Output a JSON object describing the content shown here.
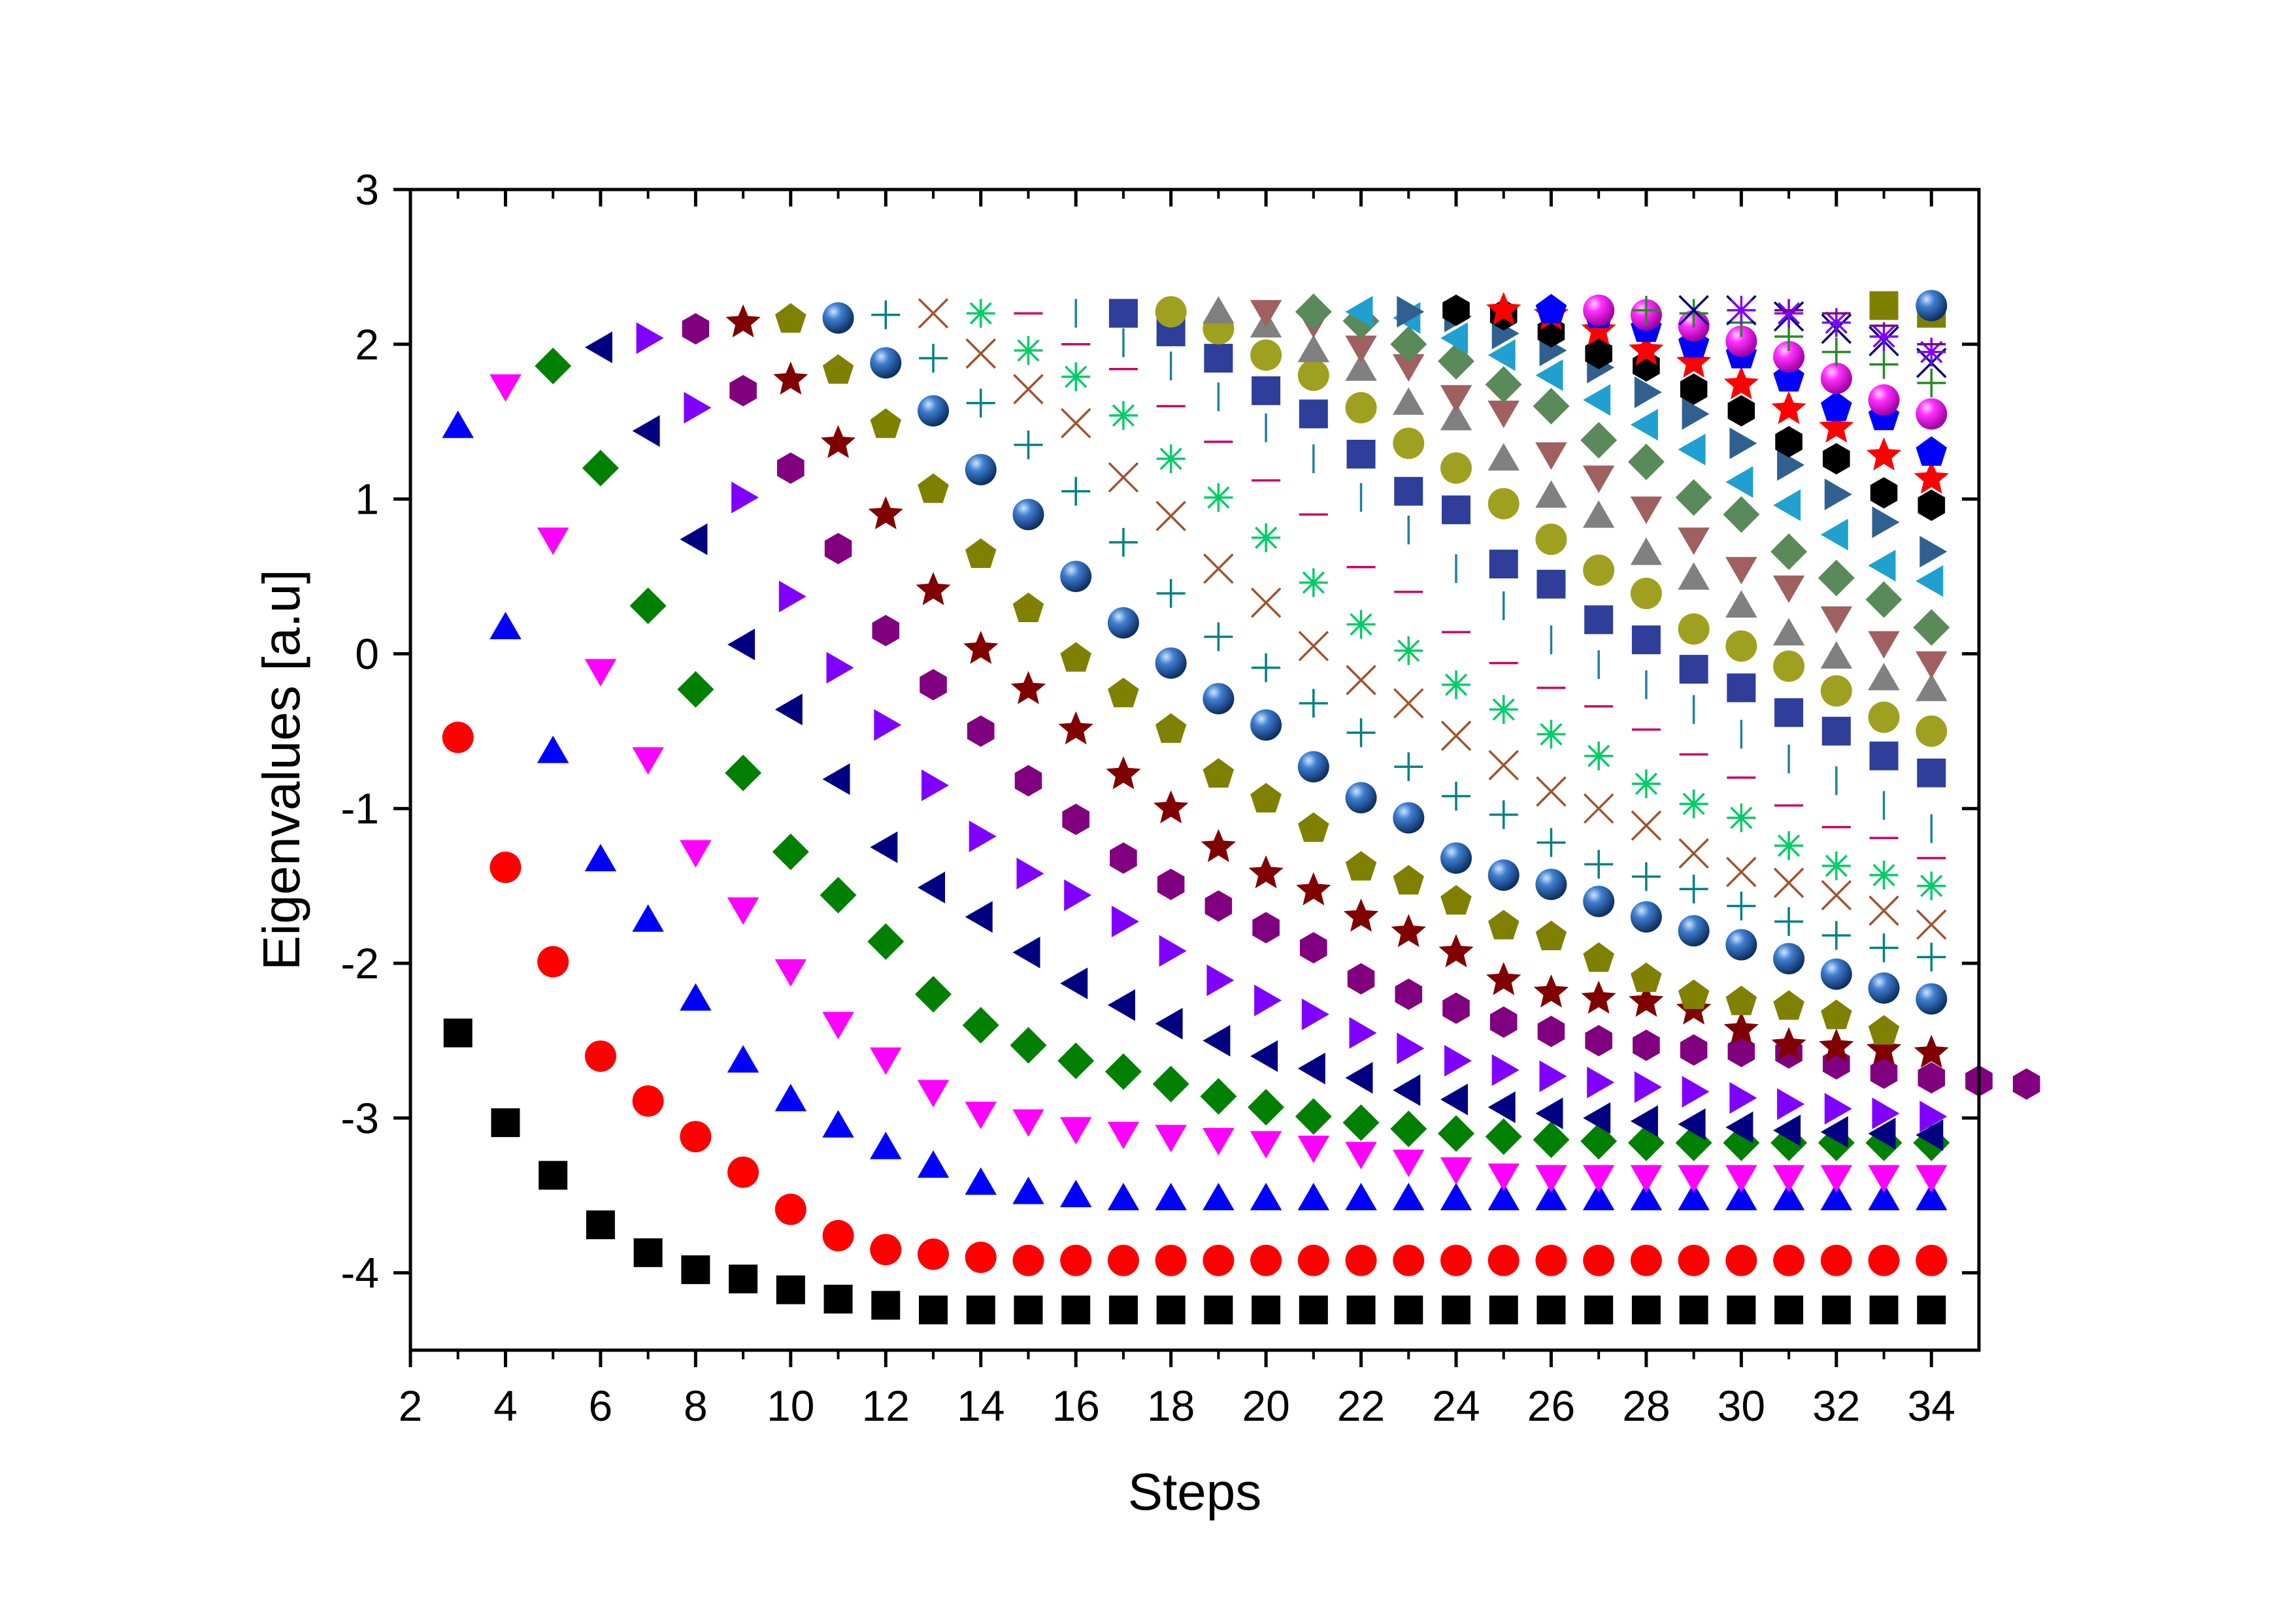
{
  "chart_data": {
    "type": "scatter",
    "title": "",
    "xlabel": "Steps",
    "ylabel": "Eigenvalues [a.u]",
    "xlim": [
      2,
      35
    ],
    "ylim": [
      -4.5,
      3
    ],
    "xticks": [
      "2",
      "4",
      "6",
      "8",
      "10",
      "12",
      "14",
      "16",
      "18",
      "20",
      "22",
      "24",
      "26",
      "28",
      "30",
      "32",
      "34"
    ],
    "yticks": [
      "-4",
      "-3",
      "-2",
      "-1",
      "0",
      "1",
      "2",
      "3"
    ],
    "grid": false,
    "legend": "none",
    "description": "Eigenvalues of an N-step chain: series k is the k-th eigenvalue, 2.2*cos(pi*k/(N+1)) - 1.02 + 0.5*(N-1)/(N+1), for N = 3..34.",
    "series": [
      {
        "marker": "square",
        "color": "#000000",
        "start": 3,
        "values": [
          -2.45,
          -3.03,
          -3.37,
          -3.69,
          -3.87,
          -3.98,
          -4.04,
          -4.11,
          -4.17,
          -4.21,
          -4.24,
          -4.24,
          -4.24,
          -4.24,
          -4.24,
          -4.24,
          -4.24,
          -4.24,
          -4.24,
          -4.24,
          -4.24,
          -4.24,
          -4.24,
          -4.24,
          -4.24,
          -4.24,
          -4.24,
          -4.24,
          -4.24,
          -4.24,
          -4.24,
          -4.24
        ]
      },
      {
        "marker": "circle",
        "color": "#ff0000",
        "start": 3,
        "values": [
          -0.54,
          -1.38,
          -1.99,
          -2.6,
          -2.89,
          -3.12,
          -3.35,
          -3.59,
          -3.76,
          -3.85,
          -3.88,
          -3.9,
          -3.92,
          -3.92,
          -3.92,
          -3.92,
          -3.92,
          -3.92,
          -3.92,
          -3.92,
          -3.92,
          -3.92,
          -3.92,
          -3.92,
          -3.92,
          -3.92,
          -3.92,
          -3.92,
          -3.92,
          -3.92,
          -3.92,
          -3.92
        ]
      },
      {
        "marker": "triangle-up",
        "color": "#0000ff",
        "start": 3,
        "values": [
          1.47,
          0.17,
          -0.63,
          -1.33,
          -1.72,
          -2.23,
          -2.63,
          -2.88,
          -3.05,
          -3.19,
          -3.31,
          -3.42,
          -3.48,
          -3.5,
          -3.52,
          -3.52,
          -3.52,
          -3.52,
          -3.52,
          -3.52,
          -3.52,
          -3.52,
          -3.52,
          -3.52,
          -3.52,
          -3.52,
          -3.52,
          -3.52,
          -3.52,
          -3.52,
          -3.52,
          -3.52
        ]
      },
      {
        "marker": "triangle-down",
        "color": "#ff00ff",
        "start": 4,
        "values": [
          1.73,
          0.74,
          -0.11,
          -0.68,
          -1.28,
          -1.65,
          -2.05,
          -2.39,
          -2.62,
          -2.83,
          -2.97,
          -3.02,
          -3.07,
          -3.1,
          -3.12,
          -3.14,
          -3.16,
          -3.19,
          -3.23,
          -3.28,
          -3.33,
          -3.37,
          -3.38,
          -3.38,
          -3.38,
          -3.38,
          -3.38,
          -3.38,
          -3.38,
          -3.38,
          -3.38
        ]
      },
      {
        "marker": "diamond",
        "color": "#008000",
        "start": 5,
        "values": [
          1.86,
          1.2,
          0.31,
          -0.23,
          -0.77,
          -1.28,
          -1.56,
          -1.86,
          -2.2,
          -2.4,
          -2.53,
          -2.63,
          -2.7,
          -2.78,
          -2.86,
          -2.93,
          -2.99,
          -3.03,
          -3.07,
          -3.1,
          -3.12,
          -3.14,
          -3.15,
          -3.16,
          -3.16,
          -3.16,
          -3.16,
          -3.16,
          -3.16,
          -3.16
        ]
      },
      {
        "marker": "triangle-left",
        "color": "#000080",
        "start": 6,
        "values": [
          1.98,
          1.44,
          0.74,
          0.06,
          -0.36,
          -0.81,
          -1.25,
          -1.51,
          -1.7,
          -1.93,
          -2.13,
          -2.27,
          -2.39,
          -2.5,
          -2.6,
          -2.68,
          -2.74,
          -2.82,
          -2.88,
          -2.93,
          -2.97,
          -3.0,
          -3.02,
          -3.04,
          -3.06,
          -3.08,
          -3.09,
          -3.1,
          -3.11
        ]
      },
      {
        "marker": "triangle-right",
        "color": "#8000ff",
        "start": 7,
        "values": [
          2.04,
          1.59,
          1.01,
          0.37,
          -0.09,
          -0.46,
          -0.85,
          -1.18,
          -1.42,
          -1.56,
          -1.73,
          -1.92,
          -2.11,
          -2.24,
          -2.33,
          -2.45,
          -2.55,
          -2.63,
          -2.69,
          -2.73,
          -2.77,
          -2.8,
          -2.83,
          -2.87,
          -2.91,
          -2.94,
          -2.97,
          -2.99
        ]
      },
      {
        "marker": "hexagon",
        "color": "#800080",
        "start": 8,
        "values": [
          2.1,
          1.7,
          1.2,
          0.68,
          0.15,
          -0.2,
          -0.5,
          -0.82,
          -1.07,
          -1.32,
          -1.49,
          -1.63,
          -1.77,
          -1.9,
          -2.1,
          -2.2,
          -2.29,
          -2.38,
          -2.44,
          -2.5,
          -2.53,
          -2.56,
          -2.57,
          -2.58,
          -2.65,
          -2.71,
          -2.74,
          -2.76,
          -2.78
        ]
      },
      {
        "marker": "star",
        "color": "#800000",
        "start": 9,
        "values": [
          2.14,
          1.77,
          1.36,
          0.9,
          0.41,
          0.03,
          -0.23,
          -0.49,
          -0.78,
          -1.0,
          -1.25,
          -1.42,
          -1.53,
          -1.7,
          -1.8,
          -1.93,
          -2.11,
          -2.19,
          -2.23,
          -2.25,
          -2.3,
          -2.43,
          -2.53,
          -2.54,
          -2.56,
          -2.58
        ]
      },
      {
        "marker": "pentagon",
        "color": "#808000",
        "start": 10,
        "values": [
          2.16,
          1.83,
          1.48,
          1.06,
          0.64,
          0.29,
          -0.03,
          -0.26,
          -0.49,
          -0.78,
          -0.94,
          -1.13,
          -1.38,
          -1.47,
          -1.6,
          -1.76,
          -1.83,
          -1.97,
          -2.1,
          -2.21,
          -2.25,
          -2.28,
          -2.34,
          -2.44
        ]
      },
      {
        "marker": "sphere",
        "color": "#1f5fa8",
        "start": 11,
        "values": [
          2.17,
          1.88,
          1.57,
          1.19,
          0.9,
          0.5,
          0.2,
          -0.06,
          -0.29,
          -0.46,
          -0.73,
          -0.93,
          -1.06,
          -1.32,
          -1.43,
          -1.49,
          -1.6,
          -1.7,
          -1.79,
          -1.88,
          -1.97,
          -2.07,
          -2.16,
          -2.23
        ]
      },
      {
        "marker": "plus",
        "color": "#008080",
        "start": 12,
        "values": [
          2.19,
          1.91,
          1.62,
          1.35,
          1.05,
          0.72,
          0.39,
          0.11,
          -0.09,
          -0.32,
          -0.51,
          -0.73,
          -0.92,
          -1.04,
          -1.22,
          -1.36,
          -1.44,
          -1.52,
          -1.63,
          -1.73,
          -1.82,
          -1.9,
          -1.96
        ]
      },
      {
        "marker": "cross",
        "color": "#a0522d",
        "start": 13,
        "values": [
          2.2,
          1.94,
          1.71,
          1.49,
          1.14,
          0.89,
          0.55,
          0.33,
          0.05,
          -0.17,
          -0.32,
          -0.53,
          -0.72,
          -0.89,
          -1.0,
          -1.11,
          -1.29,
          -1.41,
          -1.48,
          -1.56,
          -1.66,
          -1.75
        ]
      },
      {
        "marker": "asterisk",
        "color": "#00cc66",
        "start": 14,
        "values": [
          2.2,
          1.96,
          1.79,
          1.54,
          1.26,
          1.01,
          0.75,
          0.46,
          0.19,
          0.02,
          -0.2,
          -0.36,
          -0.52,
          -0.66,
          -0.84,
          -0.97,
          -1.06,
          -1.24,
          -1.37,
          -1.43,
          -1.5
        ]
      },
      {
        "marker": "hbar",
        "color": "#cc0066",
        "start": 15,
        "values": [
          2.2,
          2.0,
          1.84,
          1.6,
          1.37,
          1.12,
          0.9,
          0.56,
          0.4,
          0.14,
          -0.06,
          -0.22,
          -0.34,
          -0.49,
          -0.65,
          -0.8,
          -0.98,
          -1.12,
          -1.19,
          -1.32
        ]
      },
      {
        "marker": "vbar",
        "color": "#2080a0",
        "start": 16,
        "values": [
          2.2,
          2.01,
          1.86,
          1.66,
          1.46,
          1.26,
          1.01,
          0.8,
          0.55,
          0.31,
          0.09,
          -0.07,
          -0.2,
          -0.36,
          -0.52,
          -0.68,
          -0.82,
          -0.98,
          -1.13
        ]
      },
      {
        "marker": "square",
        "color": "#2e3e9a",
        "start": 17,
        "values": [
          2.2,
          2.08,
          1.91,
          1.7,
          1.55,
          1.29,
          1.05,
          0.93,
          0.58,
          0.45,
          0.22,
          0.09,
          -0.1,
          -0.22,
          -0.38,
          -0.5,
          -0.66,
          -0.77
        ]
      },
      {
        "marker": "circle",
        "color": "#a0a020",
        "start": 18,
        "values": [
          2.21,
          2.1,
          1.93,
          1.8,
          1.59,
          1.36,
          1.2,
          0.97,
          0.74,
          0.54,
          0.39,
          0.16,
          0.05,
          -0.08,
          -0.24,
          -0.41,
          -0.5
        ]
      },
      {
        "marker": "triangle-up",
        "color": "#808080",
        "start": 19,
        "values": [
          2.21,
          2.12,
          1.96,
          1.84,
          1.62,
          1.52,
          1.26,
          1.02,
          0.89,
          0.65,
          0.49,
          0.31,
          0.13,
          -0.02,
          -0.16,
          -0.23
        ]
      },
      {
        "marker": "triangle-down",
        "color": "#a06060",
        "start": 20,
        "values": [
          2.21,
          2.14,
          1.98,
          1.86,
          1.66,
          1.56,
          1.29,
          1.14,
          0.94,
          0.74,
          0.55,
          0.43,
          0.23,
          0.07,
          -0.06
        ]
      },
      {
        "marker": "diamond",
        "color": "#5a8a5a",
        "start": 21,
        "values": [
          2.21,
          2.15,
          2.0,
          1.89,
          1.74,
          1.6,
          1.38,
          1.24,
          1.01,
          0.9,
          0.66,
          0.49,
          0.35,
          0.17
        ]
      },
      {
        "marker": "triangle-left",
        "color": "#20a0d0",
        "start": 22,
        "values": [
          2.21,
          2.17,
          2.04,
          1.93,
          1.8,
          1.64,
          1.48,
          1.32,
          1.11,
          0.96,
          0.77,
          0.57,
          0.47
        ]
      },
      {
        "marker": "triangle-right",
        "color": "#306090",
        "start": 23,
        "values": [
          2.21,
          2.18,
          2.07,
          1.96,
          1.85,
          1.69,
          1.55,
          1.36,
          1.22,
          1.03,
          0.85,
          0.66
        ]
      },
      {
        "marker": "hexagon",
        "color": "#000000",
        "start": 24,
        "values": [
          2.22,
          2.19,
          2.08,
          1.94,
          1.86,
          1.71,
          1.57,
          1.37,
          1.26,
          1.04,
          0.96
        ]
      },
      {
        "marker": "star",
        "color": "#ff0000",
        "start": 25,
        "values": [
          2.22,
          2.19,
          2.09,
          1.96,
          1.88,
          1.74,
          1.58,
          1.46,
          1.28,
          1.13
        ]
      },
      {
        "marker": "pentagon",
        "color": "#0000ff",
        "start": 26,
        "values": [
          2.22,
          2.19,
          2.1,
          2.0,
          1.93,
          1.78,
          1.59,
          1.53,
          1.3
        ]
      },
      {
        "marker": "sphere",
        "color": "#ff00ff",
        "start": 27,
        "values": [
          2.22,
          2.19,
          2.12,
          2.02,
          1.92,
          1.78,
          1.64,
          1.55
        ]
      },
      {
        "marker": "plus",
        "color": "#228b22",
        "start": 28,
        "values": [
          2.22,
          2.2,
          2.14,
          2.05,
          1.95,
          1.87,
          1.75
        ]
      },
      {
        "marker": "cross",
        "color": "#000080",
        "start": 29,
        "values": [
          2.22,
          2.22,
          2.18,
          2.1,
          2.02,
          1.88
        ]
      },
      {
        "marker": "asterisk",
        "color": "#8000ff",
        "start": 30,
        "values": [
          2.22,
          2.2,
          2.14,
          2.05,
          1.95
        ]
      },
      {
        "marker": "hbar",
        "color": "#800080",
        "start": 31,
        "values": [
          2.22,
          2.2,
          2.12,
          2.0
        ]
      },
      {
        "marker": "square",
        "color": "#808000",
        "start": 33,
        "values": [
          2.25,
          2.2
        ]
      },
      {
        "marker": "sphere",
        "color": "#1f5fa8",
        "start": 34,
        "values": [
          2.25
        ]
      }
    ]
  }
}
